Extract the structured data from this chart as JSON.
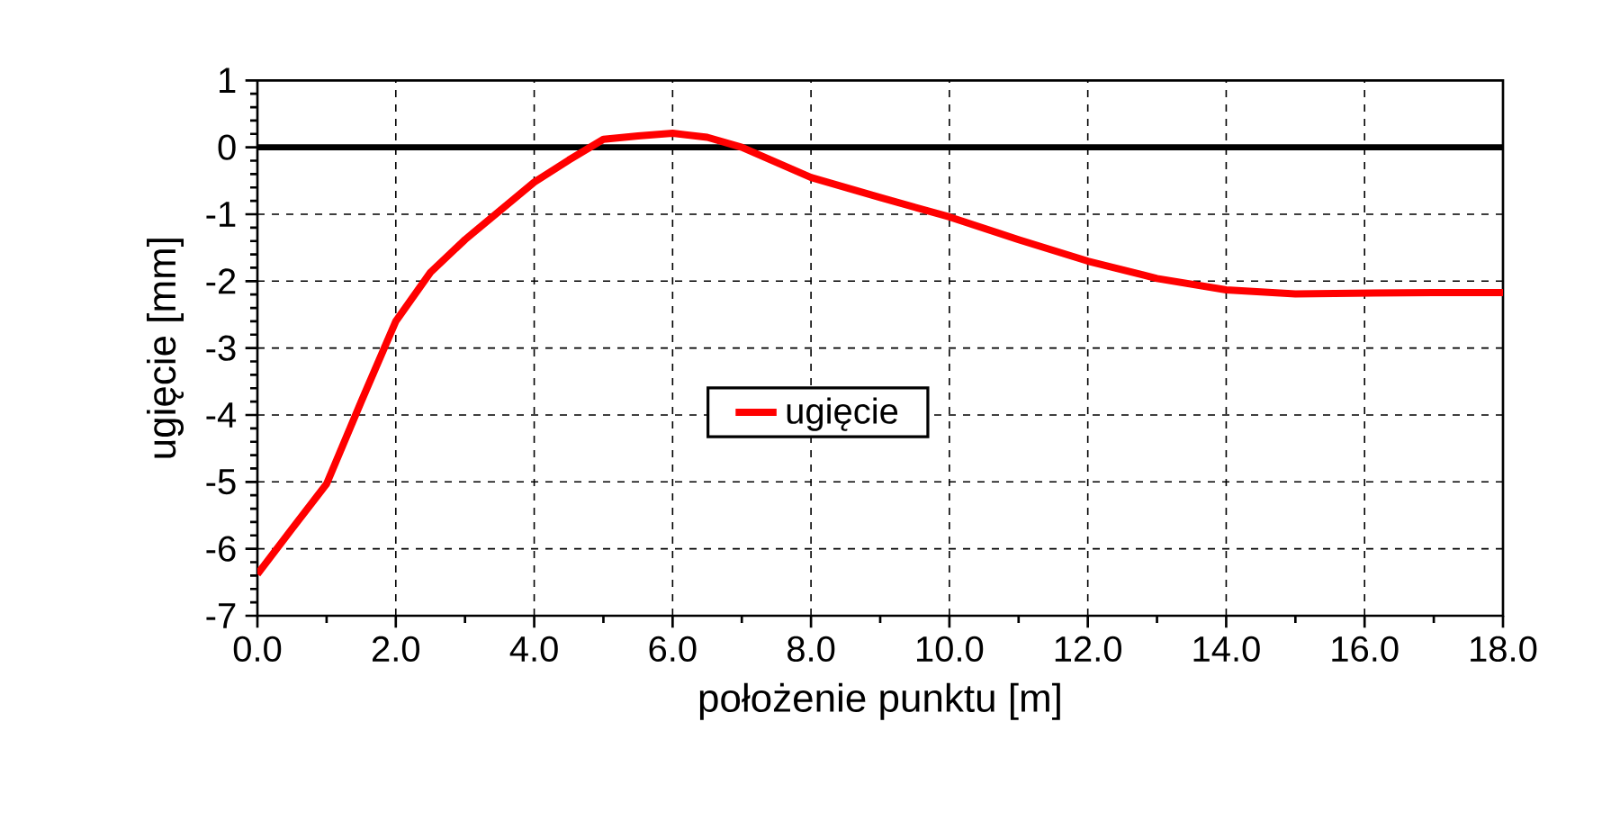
{
  "chart_data": {
    "type": "line",
    "xlabel": "położenie punktu [m]",
    "ylabel": "ugięcie [mm]",
    "x": [
      0,
      0.5,
      1,
      1.5,
      2,
      2.5,
      3,
      3.5,
      4,
      4.5,
      5,
      5.5,
      6,
      6.5,
      7,
      8,
      9,
      10,
      11,
      12,
      13,
      14,
      15,
      16,
      17,
      18
    ],
    "series": [
      {
        "name": "ugięcie",
        "color": "#ff0000",
        "values": [
          -6.38,
          -5.7,
          -5.03,
          -3.8,
          -2.6,
          -1.87,
          -1.38,
          -0.95,
          -0.52,
          -0.19,
          0.12,
          0.17,
          0.21,
          0.15,
          0.0,
          -0.45,
          -0.75,
          -1.04,
          -1.38,
          -1.7,
          -1.96,
          -2.13,
          -2.19,
          -2.18,
          -2.17,
          -2.17
        ]
      }
    ],
    "xlim": [
      0,
      18
    ],
    "ylim": [
      -7,
      1
    ],
    "xticks": [
      {
        "value": 0,
        "label": "0.0"
      },
      {
        "value": 2,
        "label": "2.0"
      },
      {
        "value": 4,
        "label": "4.0"
      },
      {
        "value": 6,
        "label": "6.0"
      },
      {
        "value": 8,
        "label": "8.0"
      },
      {
        "value": 10,
        "label": "10.0"
      },
      {
        "value": 12,
        "label": "12.0"
      },
      {
        "value": 14,
        "label": "14.0"
      },
      {
        "value": 16,
        "label": "16.0"
      },
      {
        "value": 18,
        "label": "18.0"
      }
    ],
    "yticks": [
      1,
      0,
      -1,
      -2,
      -3,
      -4,
      -5,
      -6,
      -7
    ],
    "ref_lines": [
      {
        "axis": "y",
        "value": 0,
        "color": "#000000"
      }
    ],
    "grid": true,
    "legend": "center",
    "marker": "none",
    "line_style": "solid"
  }
}
